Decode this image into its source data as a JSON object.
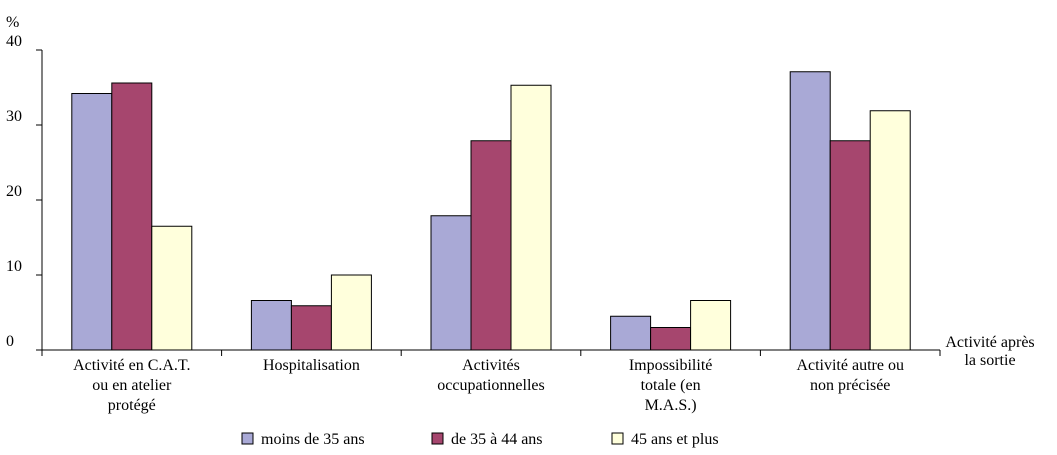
{
  "chart_data": {
    "type": "bar",
    "ylabel": "%",
    "xlabel": [
      "Activité après",
      "la sortie"
    ],
    "ylim": [
      0,
      40
    ],
    "yticks": [
      0,
      10,
      20,
      30,
      40
    ],
    "grid": false,
    "legend_position": "bottom",
    "categories": [
      [
        "Activité en C.A.T.",
        "ou en atelier",
        "protégé"
      ],
      [
        "Hospitalisation"
      ],
      [
        "Activités",
        "occupationnelles"
      ],
      [
        "Impossibilité",
        "totale (en",
        "M.A.S.)"
      ],
      [
        "Activité autre ou",
        "non précisée"
      ]
    ],
    "series": [
      {
        "name": "moins de 35 ans",
        "color": "#a9a9d6",
        "values": [
          34.2,
          6.6,
          17.9,
          4.5,
          37.1
        ]
      },
      {
        "name": "de 35 à 44 ans",
        "color": "#a6466e",
        "values": [
          35.6,
          5.9,
          27.9,
          3.0,
          27.9
        ]
      },
      {
        "name": "45 ans et plus",
        "color": "#ffffdc",
        "values": [
          16.5,
          10.0,
          35.3,
          6.6,
          31.9
        ]
      }
    ]
  }
}
